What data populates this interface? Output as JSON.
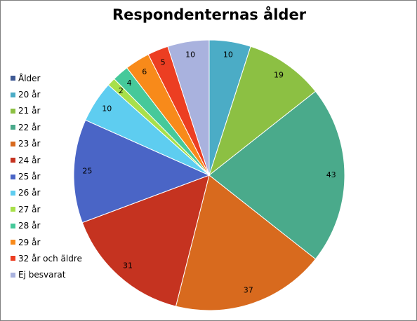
{
  "chart_data": {
    "type": "pie",
    "title": "Respondenternas ålder",
    "legend_placement": "left",
    "legend_title": "Ålder",
    "legend_title_color": "#3f5a94",
    "categories": [
      "20 år",
      "21 år",
      "22 år",
      "23 år",
      "24 år",
      "25 år",
      "26 år",
      "27 år",
      "28 år",
      "29 år",
      "32 år och äldre",
      "Ej besvarat"
    ],
    "values": [
      10,
      19,
      43,
      37,
      31,
      25,
      10,
      2,
      4,
      6,
      5,
      10
    ],
    "value_labels": [
      "10",
      "19",
      "43",
      "37",
      "31",
      "25",
      "10",
      "2",
      "4",
      "6",
      "5",
      "10"
    ],
    "colors": [
      "#4bacc6",
      "#8cc043",
      "#4aaa8b",
      "#d86a1e",
      "#c53320",
      "#4a65c6",
      "#5ecdf0",
      "#a8e04a",
      "#46c99a",
      "#f88a1a",
      "#ec3e22",
      "#a9b2de"
    ]
  }
}
